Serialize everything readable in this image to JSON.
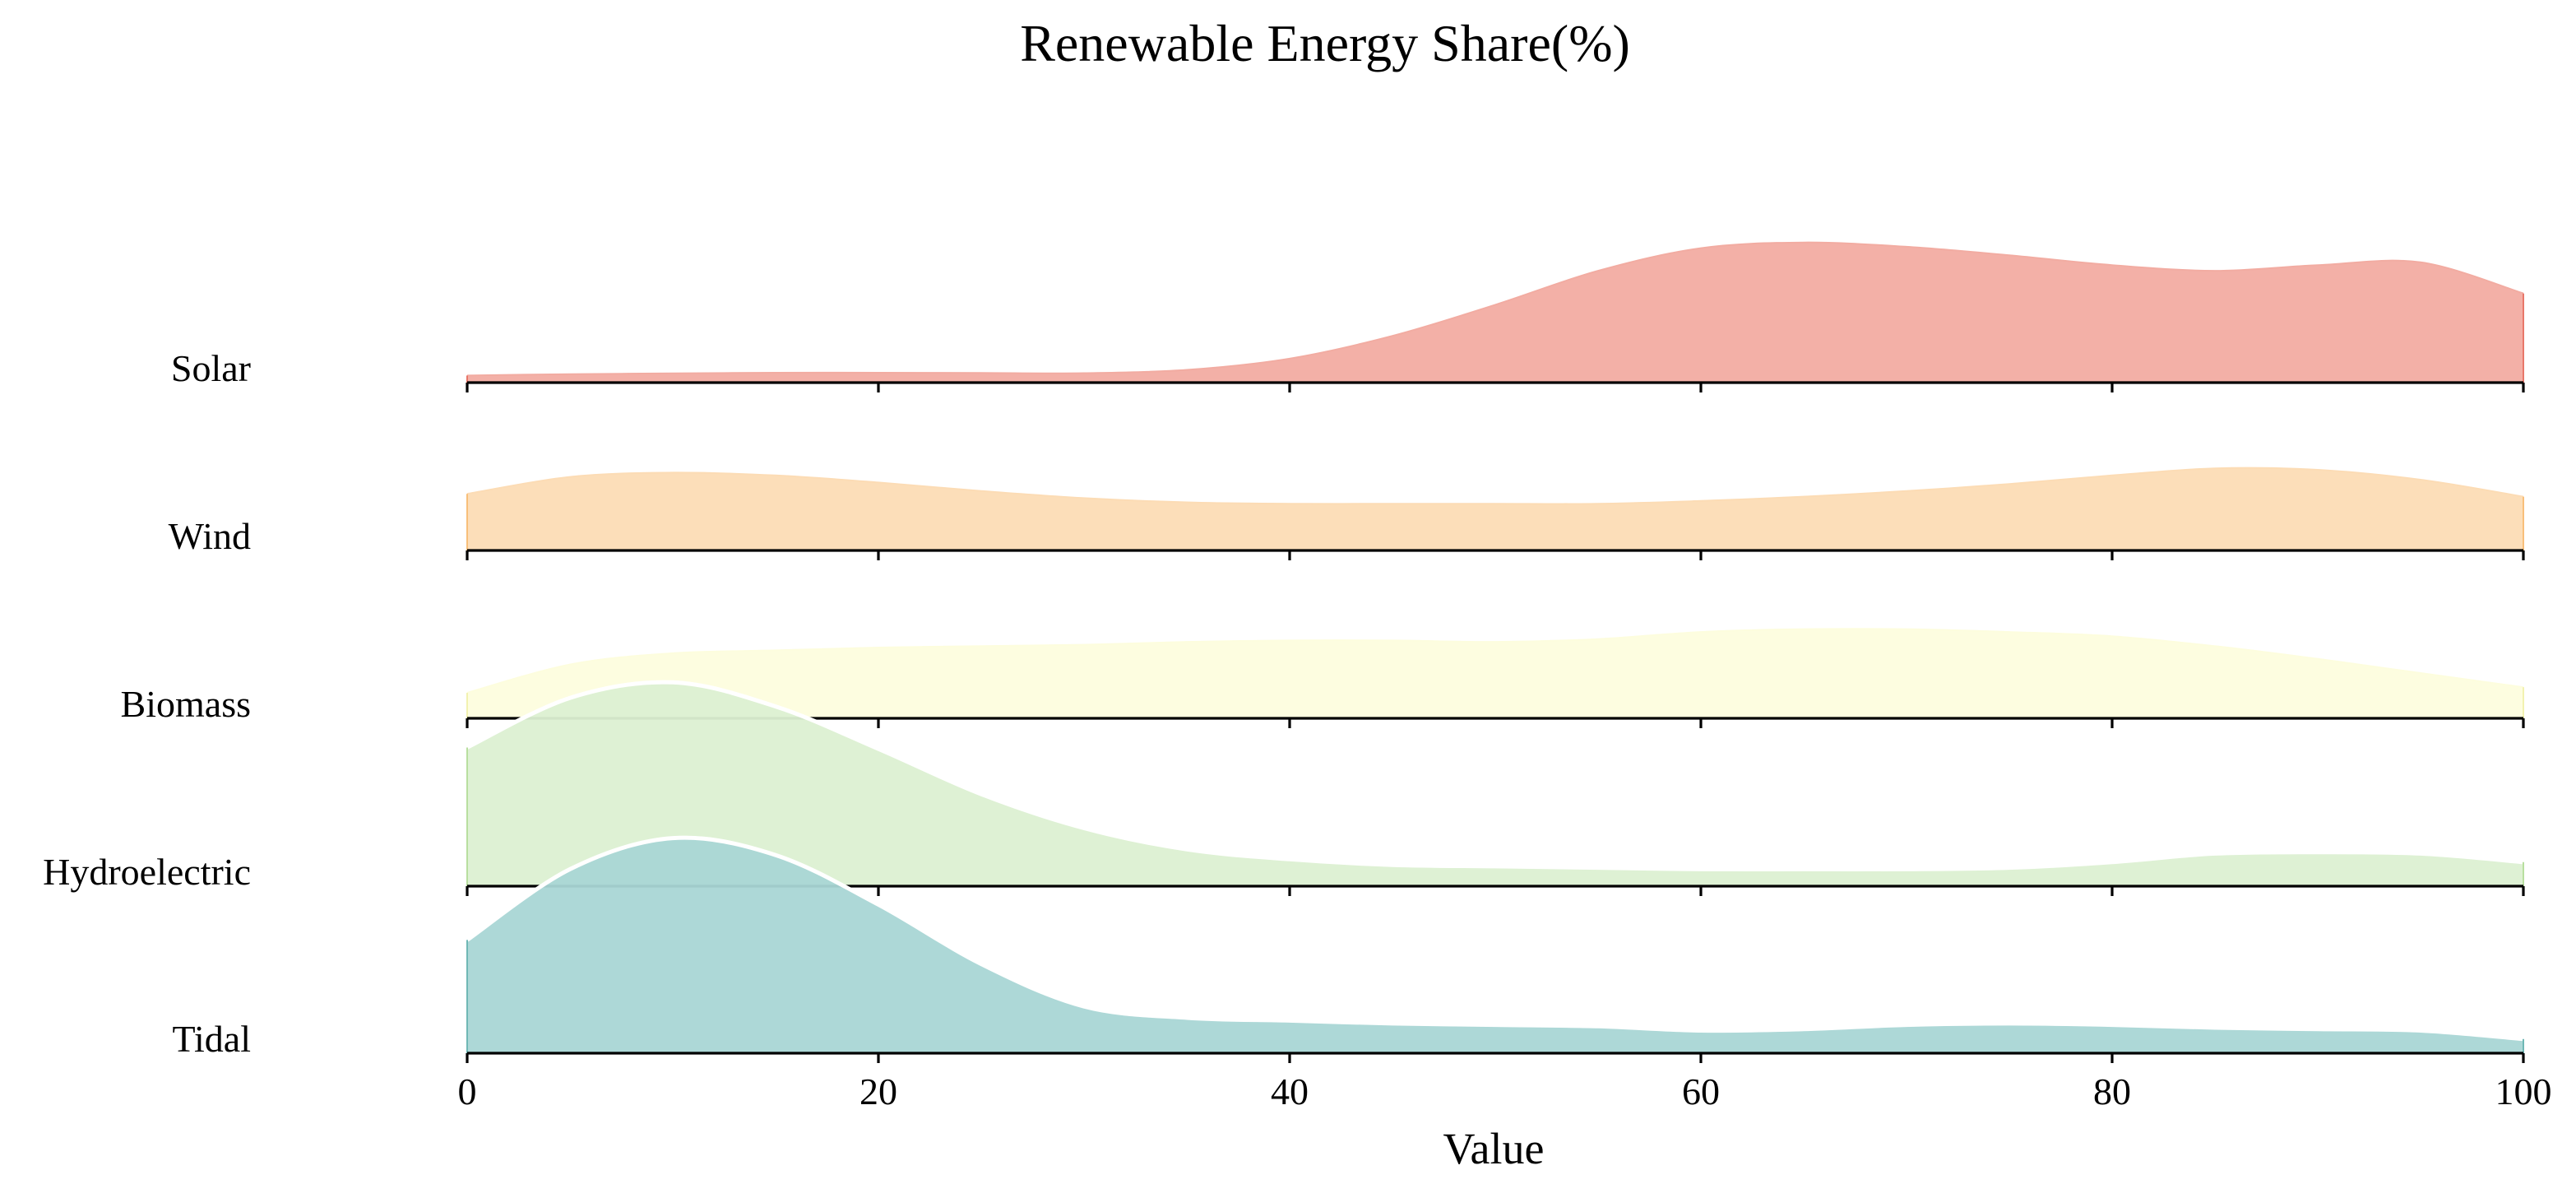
{
  "chart_data": {
    "type": "area",
    "title": "Renewable Energy Share(%)",
    "xlabel": "Value",
    "ylabel": "",
    "xlim": [
      0,
      100
    ],
    "x_ticks": [
      0,
      20,
      40,
      60,
      80,
      100
    ],
    "grid": false,
    "legend": "none",
    "x": [
      0,
      5,
      10,
      15,
      20,
      25,
      30,
      35,
      40,
      45,
      50,
      55,
      60,
      65,
      70,
      75,
      80,
      85,
      90,
      95,
      100
    ],
    "series": [
      {
        "name": "Solar",
        "color": "#f2aca2",
        "edge_color": "#e8776a",
        "values": [
          0.05,
          0.06,
          0.065,
          0.07,
          0.07,
          0.068,
          0.067,
          0.09,
          0.17,
          0.33,
          0.55,
          0.79,
          0.95,
          0.99,
          0.96,
          0.9,
          0.83,
          0.79,
          0.83,
          0.85,
          0.63
        ]
      },
      {
        "name": "Wind",
        "color": "#fcdcb5",
        "edge_color": "#f8bf7a",
        "values": [
          0.4,
          0.52,
          0.55,
          0.53,
          0.48,
          0.42,
          0.37,
          0.34,
          0.33,
          0.33,
          0.33,
          0.33,
          0.35,
          0.38,
          0.42,
          0.47,
          0.53,
          0.58,
          0.57,
          0.5,
          0.38
        ]
      },
      {
        "name": "Biomass",
        "color": "#fdfdde",
        "edge_color": "#f2f2b0",
        "values": [
          0.18,
          0.38,
          0.46,
          0.48,
          0.5,
          0.51,
          0.52,
          0.54,
          0.55,
          0.55,
          0.54,
          0.56,
          0.61,
          0.63,
          0.63,
          0.61,
          0.58,
          0.51,
          0.42,
          0.32,
          0.22
        ]
      },
      {
        "name": "Hydroelectric",
        "color": "#dcf0d2",
        "edge_color": "#b8df9f",
        "values": [
          0.98,
          1.33,
          1.44,
          1.27,
          0.97,
          0.65,
          0.41,
          0.26,
          0.19,
          0.15,
          0.14,
          0.13,
          0.12,
          0.12,
          0.12,
          0.13,
          0.17,
          0.23,
          0.24,
          0.23,
          0.17
        ]
      },
      {
        "name": "Tidal",
        "color": "#a9d6d5",
        "edge_color": "#6fb8b5",
        "values": [
          0.8,
          1.3,
          1.52,
          1.4,
          1.05,
          0.63,
          0.33,
          0.25,
          0.23,
          0.21,
          0.2,
          0.19,
          0.16,
          0.17,
          0.2,
          0.21,
          0.2,
          0.18,
          0.17,
          0.16,
          0.1
        ]
      }
    ]
  }
}
